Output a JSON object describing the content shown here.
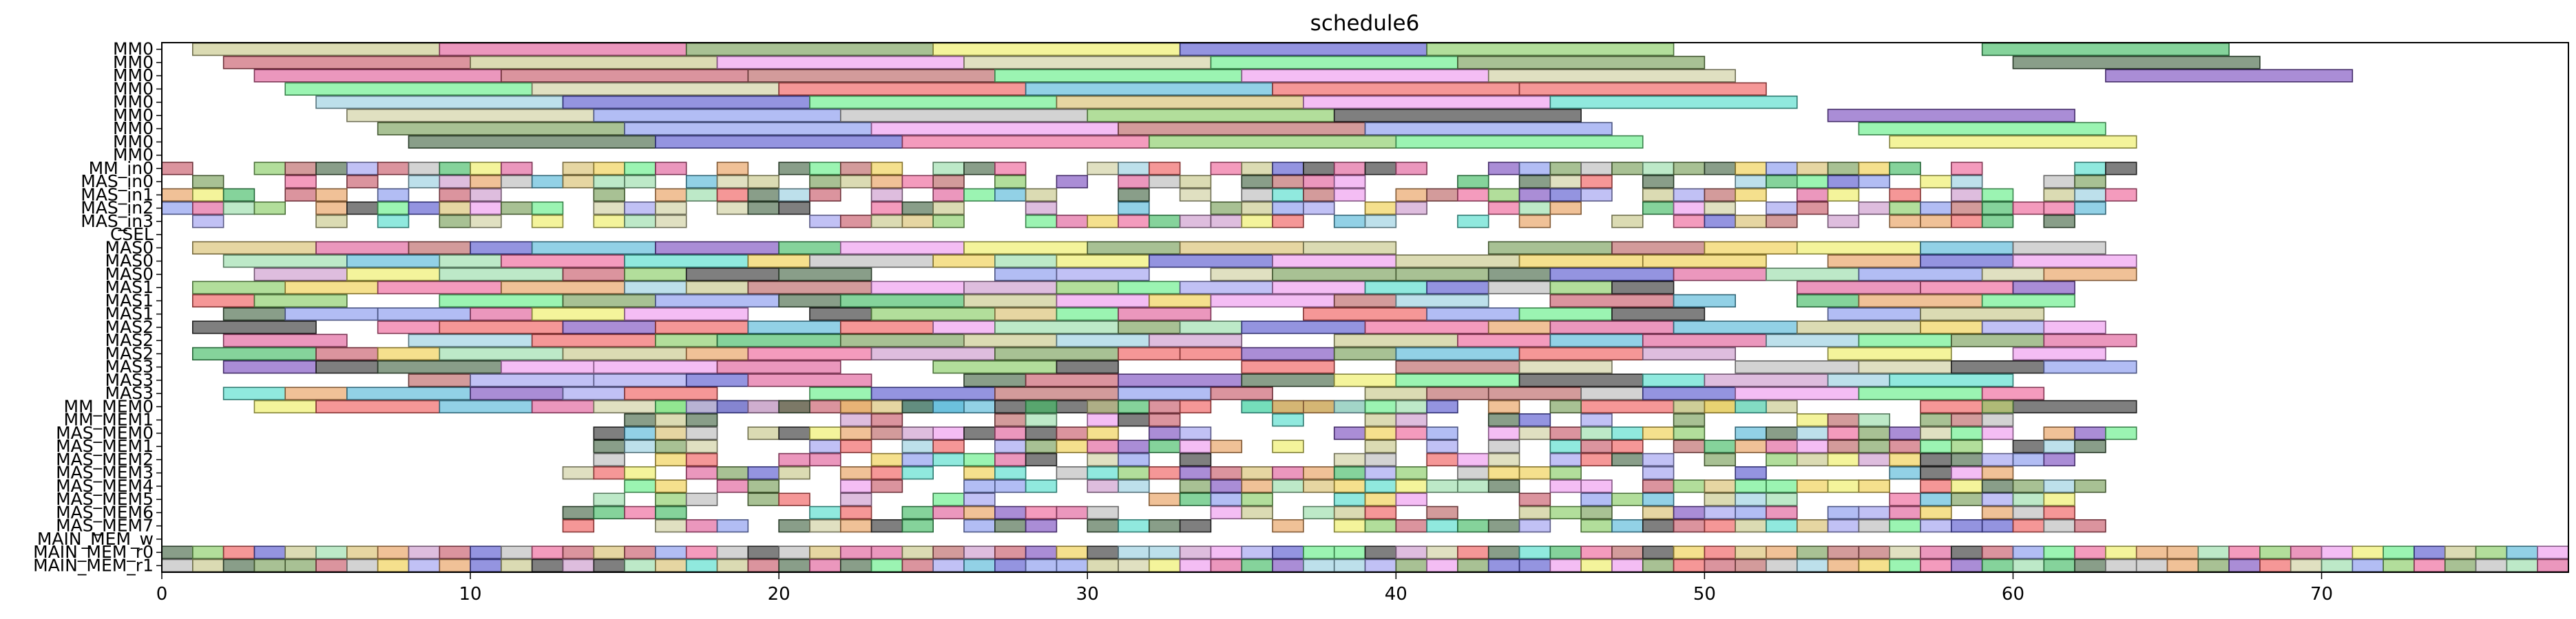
{
  "chart_data": {
    "type": "gantt",
    "title": "schedule6",
    "xlim": [
      0,
      78
    ],
    "x_ticks": [
      0,
      10,
      20,
      30,
      40,
      50,
      60,
      70
    ],
    "grid": false,
    "legend": "none",
    "rows": [
      "MM0",
      "MM0",
      "MM0",
      "MM0",
      "MM0",
      "MM0",
      "MM0",
      "MM0",
      "MM0",
      "MM_in0",
      "MAS_in0",
      "MAS_in1",
      "MAS_in2",
      "MAS_in3",
      "CSEL",
      "MAS0",
      "MAS0",
      "MAS0",
      "MAS1",
      "MAS1",
      "MAS1",
      "MAS2",
      "MAS2",
      "MAS2",
      "MAS3",
      "MAS3",
      "MAS3",
      "MM_MEM0",
      "MM_MEM1",
      "MAS_MEM0",
      "MAS_MEM1",
      "MAS_MEM2",
      "MAS_MEM3",
      "MAS_MEM4",
      "MAS_MEM5",
      "MAS_MEM6",
      "MAS_MEM7",
      "MAIN_MEM_w",
      "MAIN_MEM_r0",
      "MAIN_MEM_r1"
    ],
    "palette": [
      "#c8c88a",
      "#e0609a",
      "#7aa05a",
      "#eeee66",
      "#5a5ad0",
      "#88cc66",
      "#cfcfa0",
      "#44bb66",
      "#c85a6a",
      "#ee99ee",
      "#66ee88",
      "#f06060",
      "#bbbbbb",
      "#7c50c0",
      "#9ad0e0",
      "#d8c070",
      "#58b8d8",
      "#4a6a4a",
      "#f0d050",
      "#8899ee",
      "#ee6699",
      "#99ddaa",
      "#bb6666",
      "#3a3a3a",
      "#e8a060",
      "#55ddcc",
      "#a0a0f0",
      "#cc99cc"
    ],
    "long_spans": [
      {
        "row": 0,
        "spans": [
          [
            1,
            9,
            0
          ],
          [
            9,
            17,
            1
          ],
          [
            17,
            25,
            2
          ],
          [
            25,
            33,
            3
          ],
          [
            33,
            41,
            4
          ],
          [
            41,
            49,
            5
          ],
          [
            59,
            67,
            7
          ]
        ]
      },
      {
        "row": 1,
        "spans": [
          [
            2,
            10,
            8
          ],
          [
            10,
            18,
            0
          ],
          [
            18,
            26,
            9
          ],
          [
            26,
            34,
            6
          ],
          [
            34,
            42,
            10
          ],
          [
            42,
            50,
            2
          ],
          [
            60,
            68,
            17
          ]
        ]
      },
      {
        "row": 2,
        "spans": [
          [
            3,
            11,
            1
          ],
          [
            11,
            19,
            8
          ],
          [
            19,
            27,
            22
          ],
          [
            27,
            35,
            10
          ],
          [
            35,
            43,
            9
          ],
          [
            43,
            51,
            6
          ],
          [
            63,
            71,
            13
          ]
        ]
      },
      {
        "row": 3,
        "spans": [
          [
            4,
            12,
            10
          ],
          [
            12,
            20,
            6
          ],
          [
            20,
            28,
            11
          ],
          [
            28,
            36,
            16
          ],
          [
            36,
            44,
            11
          ],
          [
            44,
            52,
            11
          ]
        ]
      },
      {
        "row": 4,
        "spans": [
          [
            5,
            13,
            14
          ],
          [
            13,
            21,
            4
          ],
          [
            21,
            29,
            10
          ],
          [
            29,
            37,
            15
          ],
          [
            37,
            45,
            9
          ],
          [
            45,
            53,
            25
          ]
        ]
      },
      {
        "row": 5,
        "spans": [
          [
            6,
            14,
            6
          ],
          [
            14,
            22,
            19
          ],
          [
            22,
            30,
            12
          ],
          [
            30,
            38,
            5
          ],
          [
            38,
            46,
            23
          ],
          [
            54,
            62,
            13
          ]
        ]
      },
      {
        "row": 6,
        "spans": [
          [
            7,
            15,
            2
          ],
          [
            15,
            23,
            19
          ],
          [
            23,
            31,
            9
          ],
          [
            31,
            39,
            22
          ],
          [
            39,
            47,
            19
          ],
          [
            55,
            63,
            10
          ]
        ]
      },
      {
        "row": 7,
        "spans": [
          [
            8,
            16,
            17
          ],
          [
            16,
            24,
            4
          ],
          [
            24,
            32,
            20
          ],
          [
            32,
            40,
            5
          ],
          [
            40,
            48,
            10
          ],
          [
            56,
            64,
            3
          ]
        ]
      }
    ],
    "short_rows": [
      {
        "row": 9,
        "x_range": [
          0,
          64
        ],
        "seed": 11
      },
      {
        "row": 10,
        "x_range": [
          1,
          64
        ],
        "seed": 12
      },
      {
        "row": 11,
        "x_range": [
          0,
          64
        ],
        "seed": 13
      },
      {
        "row": 12,
        "x_range": [
          0,
          64
        ],
        "seed": 14
      },
      {
        "row": 13,
        "x_range": [
          0,
          62
        ],
        "seed": 15
      },
      {
        "row": 27,
        "x_range": [
          13,
          60
        ],
        "seed": 21
      },
      {
        "row": 28,
        "x_range": [
          13,
          60
        ],
        "seed": 22
      },
      {
        "row": 29,
        "x_range": [
          14,
          64
        ],
        "seed": 23
      },
      {
        "row": 30,
        "x_range": [
          14,
          64
        ],
        "seed": 24
      },
      {
        "row": 31,
        "x_range": [
          14,
          64
        ],
        "seed": 25
      },
      {
        "row": 32,
        "x_range": [
          13,
          62
        ],
        "seed": 26
      },
      {
        "row": 33,
        "x_range": [
          13,
          63
        ],
        "seed": 27
      },
      {
        "row": 34,
        "x_range": [
          13,
          63
        ],
        "seed": 28
      },
      {
        "row": 35,
        "x_range": [
          13,
          62
        ],
        "seed": 29
      },
      {
        "row": 36,
        "x_range": [
          13,
          64
        ],
        "seed": 30
      },
      {
        "row": 38,
        "x_range": [
          0,
          78
        ],
        "seed": 31,
        "dense": true
      },
      {
        "row": 39,
        "x_range": [
          0,
          78
        ],
        "seed": 32,
        "dense": true
      }
    ],
    "medium_rows": [
      {
        "row": 15,
        "x_range": [
          1,
          64
        ],
        "seed": 41
      },
      {
        "row": 16,
        "x_range": [
          2,
          64
        ],
        "seed": 42
      },
      {
        "row": 17,
        "x_range": [
          3,
          67
        ],
        "seed": 43
      },
      {
        "row": 18,
        "x_range": [
          1,
          64
        ],
        "seed": 44
      },
      {
        "row": 19,
        "x_range": [
          1,
          62
        ],
        "seed": 45
      },
      {
        "row": 20,
        "x_range": [
          2,
          61
        ],
        "seed": 46
      },
      {
        "row": 21,
        "x_range": [
          1,
          64
        ],
        "seed": 47
      },
      {
        "row": 22,
        "x_range": [
          2,
          66
        ],
        "seed": 48
      },
      {
        "row": 23,
        "x_range": [
          1,
          67
        ],
        "seed": 49
      },
      {
        "row": 24,
        "x_range": [
          2,
          65
        ],
        "seed": 50
      },
      {
        "row": 25,
        "x_range": [
          1,
          64
        ],
        "seed": 51
      },
      {
        "row": 26,
        "x_range": [
          2,
          62
        ],
        "seed": 52
      },
      {
        "row": 27,
        "x_range": [
          3,
          64
        ],
        "seed": 53
      }
    ]
  }
}
